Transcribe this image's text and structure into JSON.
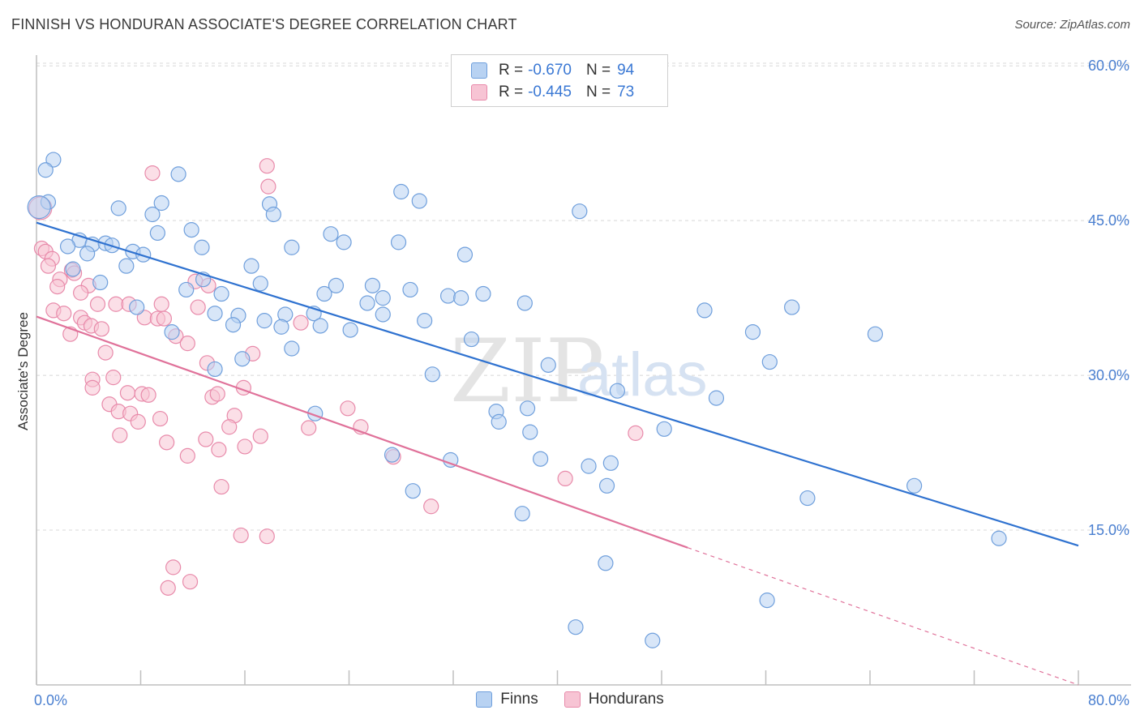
{
  "header": {
    "title": "FINNISH VS HONDURAN ASSOCIATE'S DEGREE CORRELATION CHART",
    "source": "Source: ZipAtlas.com"
  },
  "legend": {
    "rows": [
      {
        "r_label": "R =",
        "r_value": "-0.670",
        "n_label": "N =",
        "n_value": "94"
      },
      {
        "r_label": "R =",
        "r_value": "-0.445",
        "n_label": "N =",
        "n_value": "73"
      }
    ],
    "bottom": [
      "Finns",
      "Hondurans"
    ]
  },
  "colors": {
    "finns_fill": "#b8d2f2",
    "finns_stroke": "#6f9fdc",
    "finns_line": "#2f72d0",
    "hond_fill": "#f7c4d4",
    "hond_stroke": "#e88aaa",
    "hond_line": "#e0729a",
    "tick_text": "#4a7fd0",
    "grid": "#d8d8d8"
  },
  "chart_data": {
    "type": "scatter",
    "title": "FINNISH VS HONDURAN ASSOCIATE'S DEGREE CORRELATION CHART",
    "xlabel": "",
    "ylabel": "Associate's Degree",
    "xlim": [
      0,
      80
    ],
    "ylim": [
      0,
      62
    ],
    "x_tick_labels": [
      "0.0%",
      "80.0%"
    ],
    "y_ticks": [
      15,
      30,
      45,
      60
    ],
    "y_tick_labels": [
      "15.0%",
      "30.0%",
      "45.0%",
      "60.0%"
    ],
    "grid": true,
    "legend_position": "top-center",
    "watermark": "ZIPatlas",
    "series": [
      {
        "name": "Finns",
        "r": -0.67,
        "n": 94,
        "trend": {
          "x0": 0,
          "y0": 44.8,
          "x1": 80,
          "y1": 13.5
        },
        "points": [
          [
            1.3,
            50.9
          ],
          [
            0.7,
            49.9
          ],
          [
            10.9,
            49.5
          ],
          [
            0.9,
            46.8
          ],
          [
            6.3,
            46.2
          ],
          [
            9.6,
            46.7
          ],
          [
            8.9,
            45.6
          ],
          [
            17.9,
            46.6
          ],
          [
            18.2,
            45.6
          ],
          [
            28.0,
            47.8
          ],
          [
            29.4,
            46.9
          ],
          [
            41.7,
            45.9
          ],
          [
            11.9,
            44.1
          ],
          [
            9.3,
            43.8
          ],
          [
            22.6,
            43.7
          ],
          [
            23.6,
            42.9
          ],
          [
            3.3,
            43.1
          ],
          [
            2.4,
            42.5
          ],
          [
            4.3,
            42.7
          ],
          [
            5.3,
            42.8
          ],
          [
            5.8,
            42.6
          ],
          [
            12.7,
            42.4
          ],
          [
            19.6,
            42.4
          ],
          [
            27.8,
            42.9
          ],
          [
            7.4,
            42.0
          ],
          [
            8.2,
            41.7
          ],
          [
            3.9,
            41.8
          ],
          [
            32.9,
            41.7
          ],
          [
            6.9,
            40.6
          ],
          [
            16.5,
            40.6
          ],
          [
            2.8,
            40.3
          ],
          [
            12.8,
            39.3
          ],
          [
            4.9,
            39.0
          ],
          [
            17.2,
            38.9
          ],
          [
            23.0,
            38.7
          ],
          [
            25.8,
            38.7
          ],
          [
            11.5,
            38.3
          ],
          [
            28.7,
            38.3
          ],
          [
            22.1,
            37.9
          ],
          [
            26.6,
            37.5
          ],
          [
            31.6,
            37.7
          ],
          [
            34.3,
            37.9
          ],
          [
            32.6,
            37.5
          ],
          [
            14.2,
            37.9
          ],
          [
            7.7,
            36.6
          ],
          [
            25.4,
            37.0
          ],
          [
            37.5,
            37.0
          ],
          [
            51.3,
            36.3
          ],
          [
            58.0,
            36.6
          ],
          [
            13.7,
            36.0
          ],
          [
            15.5,
            35.8
          ],
          [
            19.1,
            35.9
          ],
          [
            21.3,
            36.0
          ],
          [
            26.6,
            35.9
          ],
          [
            17.5,
            35.3
          ],
          [
            29.8,
            35.3
          ],
          [
            15.1,
            34.9
          ],
          [
            18.8,
            34.7
          ],
          [
            21.8,
            34.8
          ],
          [
            24.1,
            34.4
          ],
          [
            10.4,
            34.2
          ],
          [
            55.0,
            34.2
          ],
          [
            64.4,
            34.0
          ],
          [
            33.4,
            33.5
          ],
          [
            19.6,
            32.6
          ],
          [
            15.8,
            31.6
          ],
          [
            56.3,
            31.3
          ],
          [
            13.7,
            30.6
          ],
          [
            39.3,
            31.0
          ],
          [
            30.4,
            30.1
          ],
          [
            44.6,
            28.5
          ],
          [
            52.2,
            27.8
          ],
          [
            21.4,
            26.3
          ],
          [
            35.3,
            26.5
          ],
          [
            37.7,
            26.8
          ],
          [
            35.5,
            25.5
          ],
          [
            37.9,
            24.5
          ],
          [
            48.2,
            24.8
          ],
          [
            27.3,
            22.3
          ],
          [
            31.8,
            21.8
          ],
          [
            38.7,
            21.9
          ],
          [
            42.4,
            21.2
          ],
          [
            44.1,
            21.5
          ],
          [
            43.8,
            19.3
          ],
          [
            28.9,
            18.8
          ],
          [
            67.4,
            19.3
          ],
          [
            59.2,
            18.1
          ],
          [
            37.3,
            16.6
          ],
          [
            73.9,
            14.2
          ],
          [
            43.7,
            11.8
          ],
          [
            56.1,
            8.2
          ],
          [
            41.4,
            5.6
          ],
          [
            47.3,
            4.3
          ],
          [
            0.2,
            46.3
          ]
        ]
      },
      {
        "name": "Hondurans",
        "r": -0.445,
        "n": 73,
        "trend": {
          "x0": 0,
          "y0": 35.7,
          "x1": 50,
          "y1": 13.3,
          "dash_to_x": 80,
          "dash_to_y": 0
        },
        "points": [
          [
            0.4,
            42.3
          ],
          [
            0.7,
            42.0
          ],
          [
            1.2,
            41.3
          ],
          [
            0.9,
            40.6
          ],
          [
            2.7,
            40.2
          ],
          [
            2.9,
            39.9
          ],
          [
            1.8,
            39.3
          ],
          [
            1.6,
            38.6
          ],
          [
            4.0,
            38.7
          ],
          [
            12.2,
            39.1
          ],
          [
            13.2,
            38.7
          ],
          [
            3.4,
            38.0
          ],
          [
            1.3,
            36.3
          ],
          [
            2.1,
            36.0
          ],
          [
            4.7,
            36.9
          ],
          [
            6.1,
            36.9
          ],
          [
            7.1,
            36.9
          ],
          [
            9.6,
            36.9
          ],
          [
            12.4,
            36.6
          ],
          [
            8.3,
            35.6
          ],
          [
            9.3,
            35.5
          ],
          [
            9.8,
            35.5
          ],
          [
            3.4,
            35.6
          ],
          [
            3.7,
            35.1
          ],
          [
            4.2,
            34.8
          ],
          [
            5.0,
            34.5
          ],
          [
            2.6,
            34.0
          ],
          [
            10.7,
            33.8
          ],
          [
            11.6,
            33.1
          ],
          [
            20.3,
            35.1
          ],
          [
            5.3,
            32.2
          ],
          [
            16.6,
            32.1
          ],
          [
            13.1,
            31.2
          ],
          [
            5.9,
            29.8
          ],
          [
            4.3,
            29.6
          ],
          [
            4.3,
            28.8
          ],
          [
            7.0,
            28.3
          ],
          [
            8.1,
            28.2
          ],
          [
            8.6,
            28.1
          ],
          [
            13.5,
            27.9
          ],
          [
            15.9,
            28.8
          ],
          [
            13.9,
            28.2
          ],
          [
            5.6,
            27.2
          ],
          [
            6.3,
            26.5
          ],
          [
            7.2,
            26.3
          ],
          [
            9.5,
            25.8
          ],
          [
            7.8,
            25.5
          ],
          [
            15.2,
            26.1
          ],
          [
            23.9,
            26.8
          ],
          [
            14.8,
            25.0
          ],
          [
            20.9,
            24.9
          ],
          [
            24.9,
            25.0
          ],
          [
            6.4,
            24.2
          ],
          [
            10.0,
            23.5
          ],
          [
            13.0,
            23.8
          ],
          [
            17.2,
            24.1
          ],
          [
            16.0,
            23.1
          ],
          [
            14.0,
            22.8
          ],
          [
            11.6,
            22.2
          ],
          [
            46.0,
            24.4
          ],
          [
            27.4,
            22.1
          ],
          [
            14.2,
            19.2
          ],
          [
            40.6,
            20.0
          ],
          [
            30.3,
            17.3
          ],
          [
            15.7,
            14.5
          ],
          [
            17.7,
            14.4
          ],
          [
            10.5,
            11.4
          ],
          [
            11.8,
            10.0
          ],
          [
            10.1,
            9.4
          ],
          [
            17.8,
            48.3
          ],
          [
            8.9,
            49.6
          ],
          [
            17.7,
            50.3
          ],
          [
            0.3,
            46.2
          ]
        ]
      }
    ]
  }
}
